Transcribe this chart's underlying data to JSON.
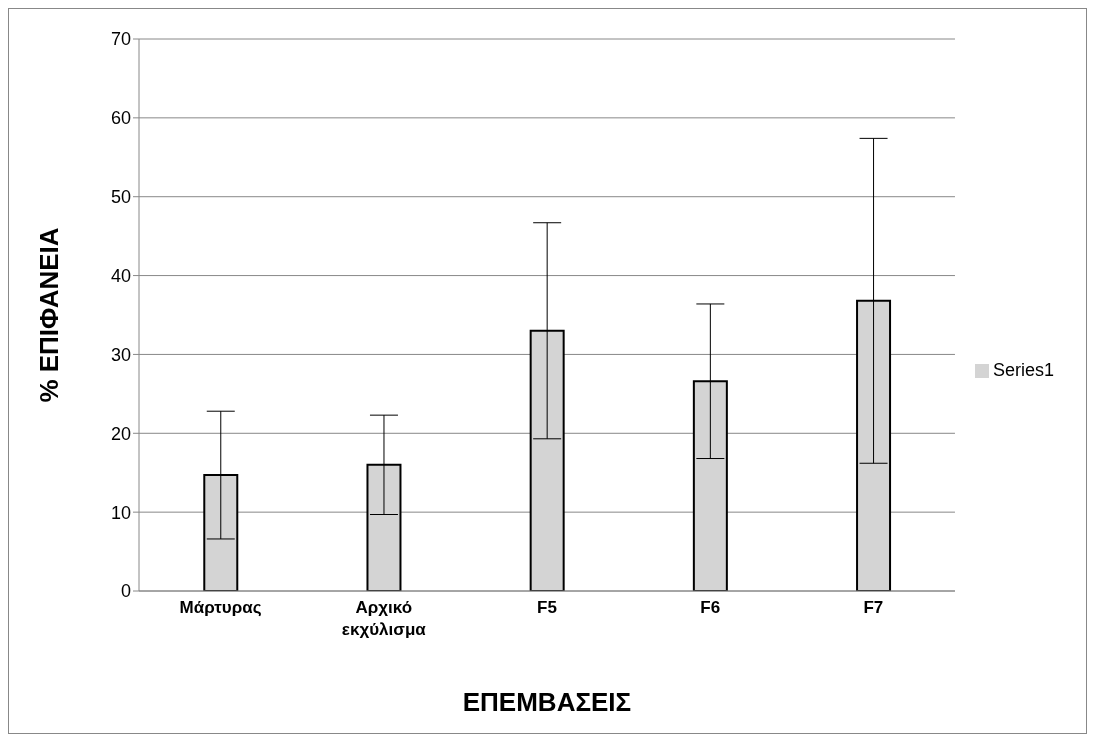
{
  "chart_data": {
    "type": "bar",
    "xlabel": "ΕΠΕΜΒΑΣΕΙΣ",
    "ylabel": "% ΕΠΙΦΑΝΕΙΑ",
    "categories": [
      "Μάρτυρας",
      "Αρχικό εκχύλισμα",
      "F5",
      "F6",
      "F7"
    ],
    "series": [
      {
        "name": "Series1",
        "color": "#d4d4d4",
        "values": [
          14.7,
          16.0,
          33.0,
          26.6,
          36.8
        ],
        "errors": [
          8.1,
          6.3,
          13.7,
          9.8,
          20.6
        ]
      }
    ],
    "ylim": [
      0,
      70
    ],
    "yticks": [
      0,
      10,
      20,
      30,
      40,
      50,
      60,
      70
    ],
    "grid": "y",
    "legend": "right"
  }
}
